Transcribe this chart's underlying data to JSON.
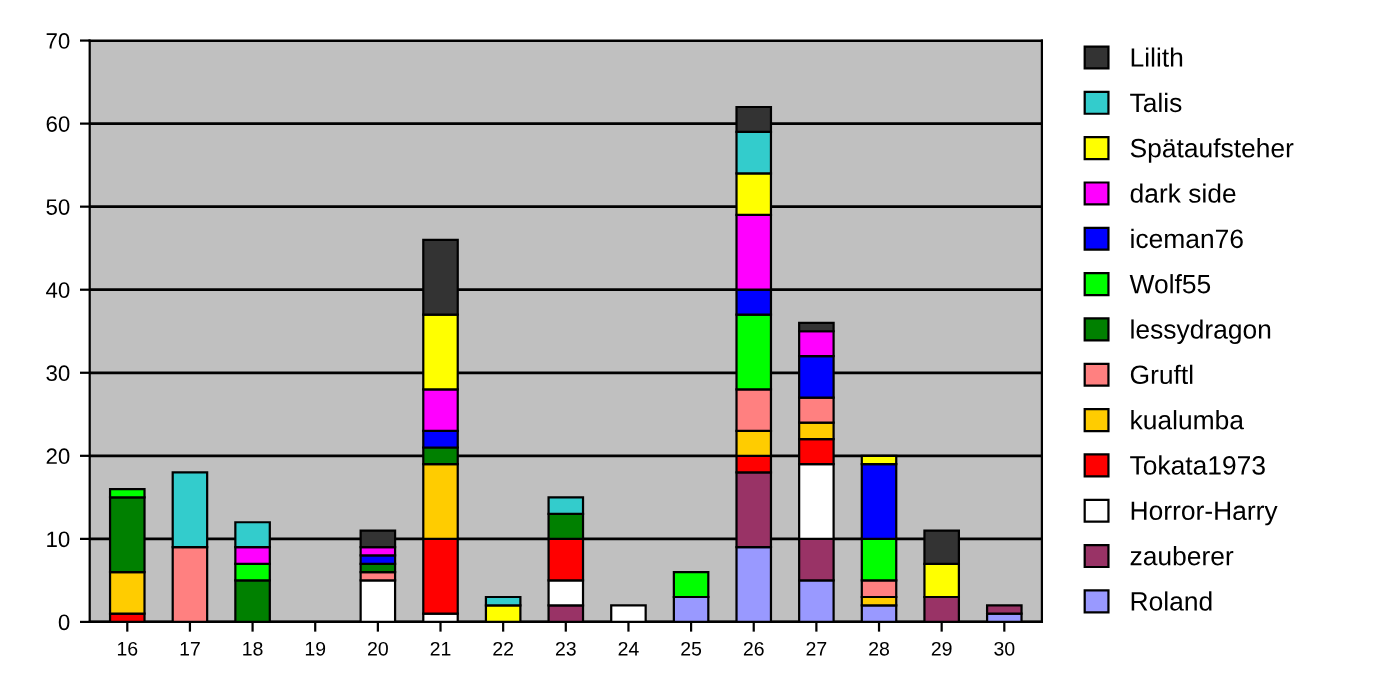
{
  "chart_data": {
    "type": "bar",
    "stacked": true,
    "categories": [
      "16",
      "17",
      "18",
      "19",
      "20",
      "21",
      "22",
      "23",
      "24",
      "25",
      "26",
      "27",
      "28",
      "29",
      "30"
    ],
    "ylim": [
      0,
      70
    ],
    "yticks": [
      0,
      10,
      20,
      30,
      40,
      50,
      60,
      70
    ],
    "grid": "y",
    "legend": "right",
    "series": [
      {
        "name": "Roland",
        "color": "#9999ff",
        "values": [
          null,
          null,
          null,
          null,
          null,
          null,
          null,
          null,
          null,
          3,
          9,
          5,
          2,
          null,
          1
        ]
      },
      {
        "name": "zauberer",
        "color": "#993366",
        "values": [
          null,
          null,
          null,
          null,
          null,
          null,
          null,
          2,
          null,
          null,
          9,
          5,
          null,
          3,
          1
        ]
      },
      {
        "name": "Horror-Harry",
        "color": "#ffffff",
        "values": [
          null,
          null,
          null,
          null,
          5,
          1,
          null,
          3,
          2,
          null,
          null,
          9,
          null,
          null,
          null
        ]
      },
      {
        "name": "Tokata1973",
        "color": "#ff0000",
        "values": [
          1,
          null,
          null,
          null,
          null,
          9,
          null,
          5,
          null,
          null,
          2,
          3,
          null,
          null,
          null
        ]
      },
      {
        "name": "kualumba",
        "color": "#ffcc00",
        "values": [
          5,
          null,
          null,
          null,
          null,
          9,
          null,
          null,
          null,
          null,
          3,
          2,
          1,
          null,
          null
        ]
      },
      {
        "name": "Gruftl",
        "color": "#ff8080",
        "values": [
          null,
          9,
          null,
          null,
          1,
          null,
          null,
          null,
          null,
          null,
          5,
          3,
          2,
          null,
          null
        ]
      },
      {
        "name": "lessydragon",
        "color": "#008000",
        "values": [
          9,
          null,
          5,
          null,
          1,
          2,
          null,
          3,
          null,
          null,
          null,
          null,
          null,
          null,
          null
        ]
      },
      {
        "name": "Wolf55",
        "color": "#00ff00",
        "values": [
          1,
          null,
          2,
          null,
          null,
          null,
          null,
          null,
          null,
          3,
          9,
          null,
          5,
          null,
          null
        ]
      },
      {
        "name": "iceman76",
        "color": "#0000ff",
        "values": [
          null,
          null,
          null,
          null,
          1,
          2,
          null,
          null,
          null,
          null,
          3,
          5,
          9,
          null,
          null
        ]
      },
      {
        "name": "dark side",
        "color": "#ff00ff",
        "values": [
          null,
          null,
          2,
          null,
          1,
          5,
          null,
          null,
          null,
          null,
          9,
          3,
          null,
          null,
          null
        ]
      },
      {
        "name": "Spätaufsteher",
        "color": "#ffff00",
        "values": [
          null,
          null,
          null,
          null,
          null,
          9,
          2,
          null,
          null,
          null,
          5,
          null,
          1,
          4,
          null
        ]
      },
      {
        "name": "Talis",
        "color": "#33cccc",
        "values": [
          null,
          9,
          3,
          null,
          null,
          null,
          1,
          2,
          null,
          null,
          5,
          null,
          null,
          null,
          null
        ]
      },
      {
        "name": "Lilith",
        "color": "#333333",
        "values": [
          null,
          null,
          null,
          null,
          2,
          9,
          null,
          null,
          null,
          null,
          3,
          1,
          null,
          4,
          null
        ]
      }
    ]
  }
}
